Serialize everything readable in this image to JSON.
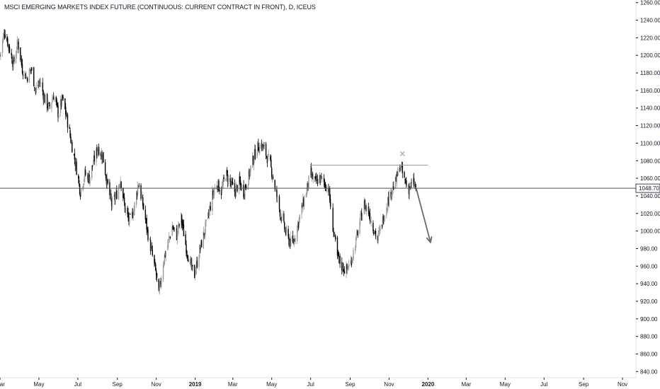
{
  "header": {
    "title": "MSCI EMERGING MARKETS INDEX FUTURE (CONTINUOUS: CURRENT CONTRACT IN FRONT), D, ICEUS"
  },
  "colors": {
    "up_candle": "#9a9a9a",
    "down_candle": "#000000",
    "price_line": "#555555",
    "annotation": "#9a9a9a",
    "axis_text": "#131722",
    "price_label_bg": "#ffffff",
    "price_label_text": "#000000"
  },
  "chart_data": {
    "type": "candlestick",
    "symbol": "MSCI EMERGING MARKETS INDEX FUTURE (CONTINUOUS: CURRENT CONTRACT IN FRONT)",
    "interval": "D",
    "exchange": "ICEUS",
    "current_price": 1048.7,
    "current_price_label": "1048.70",
    "ylim": [
      833,
      1263
    ],
    "y_ticks": [
      "1260.00",
      "1240.00",
      "1220.00",
      "1200.00",
      "1180.00",
      "1160.00",
      "1140.00",
      "1120.00",
      "1100.00",
      "1080.00",
      "1060.00",
      "1040.00",
      "1020.00",
      "1000.00",
      "980.00",
      "960.00",
      "940.00",
      "920.00",
      "900.00",
      "880.00",
      "860.00",
      "840.00"
    ],
    "x_range": [
      "2018-03-01",
      "2020-11-22"
    ],
    "x_ticks": [
      {
        "date": "2018-03-01",
        "label": "Mar",
        "bold": false
      },
      {
        "date": "2018-05-01",
        "label": "May",
        "bold": false
      },
      {
        "date": "2018-07-01",
        "label": "Jul",
        "bold": false
      },
      {
        "date": "2018-09-01",
        "label": "Sep",
        "bold": false
      },
      {
        "date": "2018-11-01",
        "label": "Nov",
        "bold": false
      },
      {
        "date": "2019-01-01",
        "label": "2019",
        "bold": true
      },
      {
        "date": "2019-03-01",
        "label": "Mar",
        "bold": false
      },
      {
        "date": "2019-05-01",
        "label": "May",
        "bold": false
      },
      {
        "date": "2019-07-01",
        "label": "Jul",
        "bold": false
      },
      {
        "date": "2019-09-01",
        "label": "Sep",
        "bold": false
      },
      {
        "date": "2019-11-01",
        "label": "Nov",
        "bold": false
      },
      {
        "date": "2020-01-01",
        "label": "2020",
        "bold": true
      },
      {
        "date": "2020-03-01",
        "label": "Mar",
        "bold": false
      },
      {
        "date": "2020-05-01",
        "label": "May",
        "bold": false
      },
      {
        "date": "2020-07-01",
        "label": "Jul",
        "bold": false
      },
      {
        "date": "2020-09-01",
        "label": "Sep",
        "bold": false
      },
      {
        "date": "2020-11-01",
        "label": "Nov",
        "bold": false
      }
    ],
    "close_series": [
      {
        "date": "2018-03-01",
        "close": 1200
      },
      {
        "date": "2018-03-08",
        "close": 1228
      },
      {
        "date": "2018-03-15",
        "close": 1210
      },
      {
        "date": "2018-03-22",
        "close": 1190
      },
      {
        "date": "2018-03-29",
        "close": 1215
      },
      {
        "date": "2018-04-05",
        "close": 1185
      },
      {
        "date": "2018-04-12",
        "close": 1175
      },
      {
        "date": "2018-04-19",
        "close": 1185
      },
      {
        "date": "2018-04-26",
        "close": 1160
      },
      {
        "date": "2018-05-03",
        "close": 1170
      },
      {
        "date": "2018-05-10",
        "close": 1150
      },
      {
        "date": "2018-05-17",
        "close": 1140
      },
      {
        "date": "2018-05-24",
        "close": 1155
      },
      {
        "date": "2018-05-31",
        "close": 1135
      },
      {
        "date": "2018-06-07",
        "close": 1150
      },
      {
        "date": "2018-06-14",
        "close": 1128
      },
      {
        "date": "2018-06-21",
        "close": 1100
      },
      {
        "date": "2018-06-28",
        "close": 1075
      },
      {
        "date": "2018-07-05",
        "close": 1045
      },
      {
        "date": "2018-07-12",
        "close": 1065
      },
      {
        "date": "2018-07-19",
        "close": 1060
      },
      {
        "date": "2018-07-26",
        "close": 1080
      },
      {
        "date": "2018-08-02",
        "close": 1095
      },
      {
        "date": "2018-08-09",
        "close": 1085
      },
      {
        "date": "2018-08-16",
        "close": 1055
      },
      {
        "date": "2018-08-23",
        "close": 1030
      },
      {
        "date": "2018-08-30",
        "close": 1040
      },
      {
        "date": "2018-09-06",
        "close": 1060
      },
      {
        "date": "2018-09-13",
        "close": 1025
      },
      {
        "date": "2018-09-20",
        "close": 1010
      },
      {
        "date": "2018-09-27",
        "close": 1025
      },
      {
        "date": "2018-10-04",
        "close": 1055
      },
      {
        "date": "2018-10-11",
        "close": 1030
      },
      {
        "date": "2018-10-18",
        "close": 1000
      },
      {
        "date": "2018-10-25",
        "close": 975
      },
      {
        "date": "2018-11-01",
        "close": 950
      },
      {
        "date": "2018-11-05",
        "close": 925
      },
      {
        "date": "2018-11-12",
        "close": 965
      },
      {
        "date": "2018-11-19",
        "close": 985
      },
      {
        "date": "2018-11-26",
        "close": 1005
      },
      {
        "date": "2018-12-03",
        "close": 995
      },
      {
        "date": "2018-12-10",
        "close": 1015
      },
      {
        "date": "2018-12-17",
        "close": 985
      },
      {
        "date": "2018-12-24",
        "close": 962
      },
      {
        "date": "2018-12-31",
        "close": 950
      },
      {
        "date": "2019-01-07",
        "close": 975
      },
      {
        "date": "2019-01-14",
        "close": 995
      },
      {
        "date": "2019-01-21",
        "close": 1015
      },
      {
        "date": "2019-01-28",
        "close": 1040
      },
      {
        "date": "2019-02-04",
        "close": 1055
      },
      {
        "date": "2019-02-11",
        "close": 1045
      },
      {
        "date": "2019-02-18",
        "close": 1065
      },
      {
        "date": "2019-02-25",
        "close": 1055
      },
      {
        "date": "2019-03-04",
        "close": 1045
      },
      {
        "date": "2019-03-11",
        "close": 1055
      },
      {
        "date": "2019-03-18",
        "close": 1045
      },
      {
        "date": "2019-03-25",
        "close": 1060
      },
      {
        "date": "2019-04-01",
        "close": 1080
      },
      {
        "date": "2019-04-08",
        "close": 1095
      },
      {
        "date": "2019-04-15",
        "close": 1098
      },
      {
        "date": "2019-04-22",
        "close": 1088
      },
      {
        "date": "2019-04-29",
        "close": 1075
      },
      {
        "date": "2019-05-06",
        "close": 1050
      },
      {
        "date": "2019-05-13",
        "close": 1025
      },
      {
        "date": "2019-05-20",
        "close": 1005
      },
      {
        "date": "2019-05-27",
        "close": 990
      },
      {
        "date": "2019-06-03",
        "close": 985
      },
      {
        "date": "2019-06-10",
        "close": 1005
      },
      {
        "date": "2019-06-17",
        "close": 1025
      },
      {
        "date": "2019-06-24",
        "close": 1045
      },
      {
        "date": "2019-07-01",
        "close": 1065
      },
      {
        "date": "2019-07-08",
        "close": 1055
      },
      {
        "date": "2019-07-15",
        "close": 1060
      },
      {
        "date": "2019-07-22",
        "close": 1055
      },
      {
        "date": "2019-07-29",
        "close": 1048
      },
      {
        "date": "2019-08-05",
        "close": 1005
      },
      {
        "date": "2019-08-12",
        "close": 970
      },
      {
        "date": "2019-08-19",
        "close": 960
      },
      {
        "date": "2019-08-26",
        "close": 955
      },
      {
        "date": "2019-09-02",
        "close": 965
      },
      {
        "date": "2019-09-09",
        "close": 985
      },
      {
        "date": "2019-09-16",
        "close": 1010
      },
      {
        "date": "2019-09-23",
        "close": 1030
      },
      {
        "date": "2019-09-30",
        "close": 1022
      },
      {
        "date": "2019-10-07",
        "close": 1005
      },
      {
        "date": "2019-10-14",
        "close": 990
      },
      {
        "date": "2019-10-21",
        "close": 1010
      },
      {
        "date": "2019-10-28",
        "close": 1030
      },
      {
        "date": "2019-11-04",
        "close": 1045
      },
      {
        "date": "2019-11-11",
        "close": 1055
      },
      {
        "date": "2019-11-18",
        "close": 1075
      },
      {
        "date": "2019-11-25",
        "close": 1058
      },
      {
        "date": "2019-12-02",
        "close": 1048
      },
      {
        "date": "2019-12-09",
        "close": 1055
      },
      {
        "date": "2019-12-13",
        "close": 1048.7
      }
    ],
    "annotations": {
      "resistance_line": {
        "from_date": "2019-07-01",
        "to_date": "2020-01-01",
        "price": 1075
      },
      "x_marker": {
        "date": "2019-11-22",
        "price": 1088
      },
      "arrow": {
        "from_date": "2019-12-13",
        "from_price": 1050,
        "to_date": "2020-01-05",
        "to_price": 987
      }
    }
  }
}
